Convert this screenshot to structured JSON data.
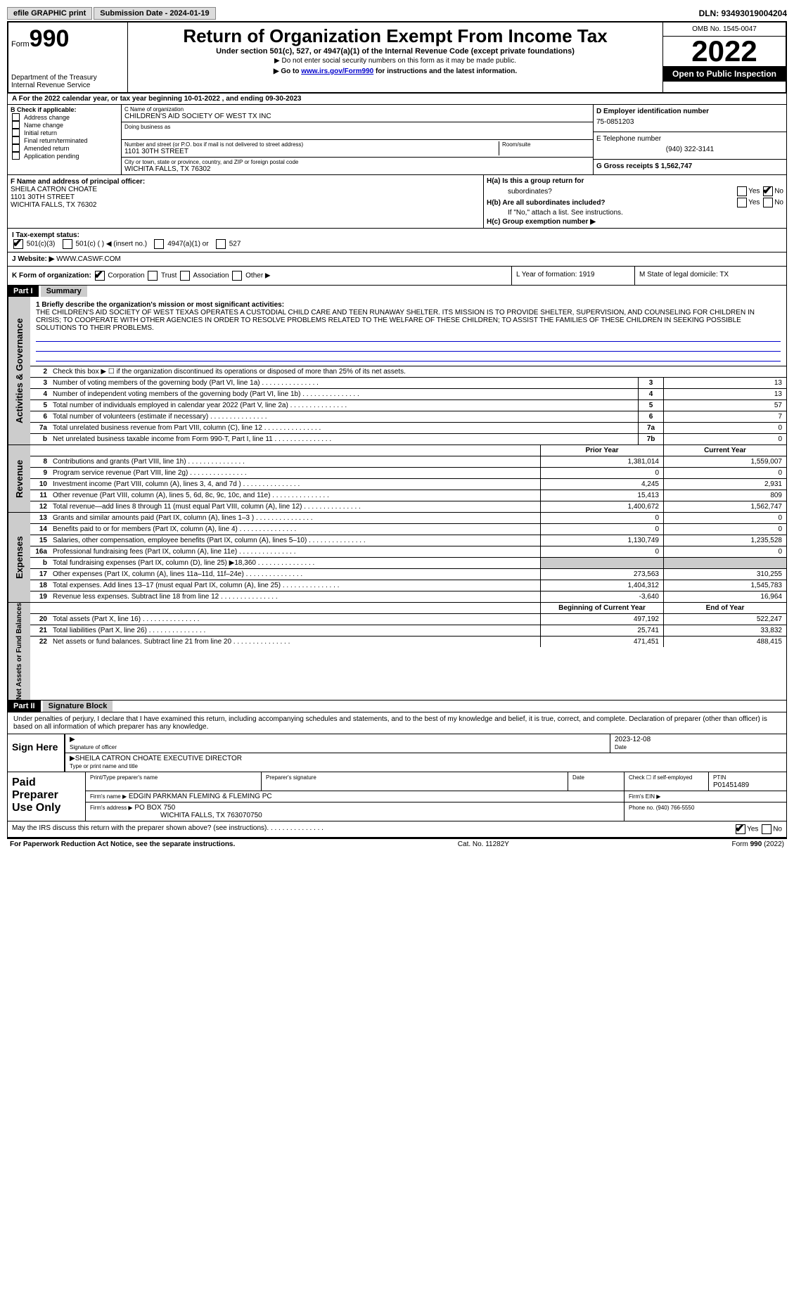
{
  "header": {
    "efile": "efile GRAPHIC print",
    "submission_date_label": "Submission Date - 2024-01-19",
    "dln": "DLN: 93493019004204"
  },
  "form_header": {
    "form_label": "Form",
    "form_number": "990",
    "dept": "Department of the Treasury\nInternal Revenue Service",
    "title": "Return of Organization Exempt From Income Tax",
    "sub1": "Under section 501(c), 527, or 4947(a)(1) of the Internal Revenue Code (except private foundations)",
    "sub2": "▶ Do not enter social security numbers on this form as it may be made public.",
    "sub3_pre": "▶ Go to ",
    "sub3_link": "www.irs.gov/Form990",
    "sub3_post": " for instructions and the latest information.",
    "omb": "OMB No. 1545-0047",
    "year": "2022",
    "open": "Open to Public Inspection"
  },
  "row_a": "A For the 2022 calendar year, or tax year beginning 10-01-2022   , and ending 09-30-2023",
  "col_b": {
    "title": "B Check if applicable:",
    "items": [
      "Address change",
      "Name change",
      "Initial return",
      "Final return/terminated",
      "Amended return",
      "Application pending"
    ]
  },
  "col_c": {
    "name_lbl": "C Name of organization",
    "name": "CHILDREN'S AID SOCIETY OF WEST TX INC",
    "dba_lbl": "Doing business as",
    "street_lbl": "Number and street (or P.O. box if mail is not delivered to street address)",
    "street": "1101 30TH STREET",
    "room_lbl": "Room/suite",
    "city_lbl": "City or town, state or province, country, and ZIP or foreign postal code",
    "city": "WICHITA FALLS, TX  76302"
  },
  "col_d": {
    "ein_lbl": "D Employer identification number",
    "ein": "75-0851203",
    "tel_lbl": "E Telephone number",
    "tel": "(940) 322-3141",
    "gross_lbl": "G Gross receipts $ 1,562,747"
  },
  "col_f": {
    "lbl": "F Name and address of principal officer:",
    "name": "SHEILA CATRON CHOATE",
    "street": "1101 30TH STREET",
    "city": "WICHITA FALLS, TX  76302"
  },
  "col_h": {
    "ha": "H(a)  Is this a group return for",
    "ha2": "subordinates?",
    "hb": "H(b) Are all subordinates included?",
    "hb_note": "If \"No,\" attach a list. See instructions.",
    "hc": "H(c) Group exemption number ▶"
  },
  "row_i": {
    "lbl": "I   Tax-exempt status:",
    "c1": "501(c)(3)",
    "c2": "501(c) (  ) ◀ (insert no.)",
    "c3": "4947(a)(1) or",
    "c4": "527"
  },
  "row_j": {
    "lbl": "J   Website: ▶",
    "val": "WWW.CASWF.COM"
  },
  "row_k": {
    "lbl": "K Form of organization:",
    "opts": [
      "Corporation",
      "Trust",
      "Association",
      "Other ▶"
    ]
  },
  "row_l": "L Year of formation: 1919",
  "row_m": "M State of legal domicile: TX",
  "part1": {
    "head": "Part I",
    "title": "Summary",
    "q1_lbl": "1  Briefly describe the organization's mission or most significant activities:",
    "mission": "THE CHILDREN'S AID SOCIETY OF WEST TEXAS OPERATES A CUSTODIAL CHILD CARE AND TEEN RUNAWAY SHELTER. ITS MISSION IS TO PROVIDE SHELTER, SUPERVISION, AND COUNSELING FOR CHILDREN IN CRISIS; TO COOPERATE WITH OTHER AGENCIES IN ORDER TO RESOLVE PROBLEMS RELATED TO THE WELFARE OF THESE CHILDREN; TO ASSIST THE FAMILIES OF THESE CHILDREN IN SEEKING POSSIBLE SOLUTIONS TO THEIR PROBLEMS."
  },
  "tabs": {
    "act": "Activities & Governance",
    "rev": "Revenue",
    "exp": "Expenses",
    "net": "Net Assets or Fund Balances"
  },
  "gov_rows": [
    {
      "n": "2",
      "d": "Check this box ▶ ☐ if the organization discontinued its operations or disposed of more than 25% of its net assets."
    },
    {
      "n": "3",
      "d": "Number of voting members of the governing body (Part VI, line 1a)",
      "b": "3",
      "v": "13"
    },
    {
      "n": "4",
      "d": "Number of independent voting members of the governing body (Part VI, line 1b)",
      "b": "4",
      "v": "13"
    },
    {
      "n": "5",
      "d": "Total number of individuals employed in calendar year 2022 (Part V, line 2a)",
      "b": "5",
      "v": "57"
    },
    {
      "n": "6",
      "d": "Total number of volunteers (estimate if necessary)",
      "b": "6",
      "v": "7"
    },
    {
      "n": "7a",
      "d": "Total unrelated business revenue from Part VIII, column (C), line 12",
      "b": "7a",
      "v": "0"
    },
    {
      "n": "b",
      "d": "Net unrelated business taxable income from Form 990-T, Part I, line 11",
      "b": "7b",
      "v": "0"
    }
  ],
  "rev_head": {
    "pyr": "Prior Year",
    "cyr": "Current Year"
  },
  "rev_rows": [
    {
      "n": "8",
      "d": "Contributions and grants (Part VIII, line 1h)",
      "p": "1,381,014",
      "c": "1,559,007"
    },
    {
      "n": "9",
      "d": "Program service revenue (Part VIII, line 2g)",
      "p": "0",
      "c": "0"
    },
    {
      "n": "10",
      "d": "Investment income (Part VIII, column (A), lines 3, 4, and 7d )",
      "p": "4,245",
      "c": "2,931"
    },
    {
      "n": "11",
      "d": "Other revenue (Part VIII, column (A), lines 5, 6d, 8c, 9c, 10c, and 11e)",
      "p": "15,413",
      "c": "809"
    },
    {
      "n": "12",
      "d": "Total revenue—add lines 8 through 11 (must equal Part VIII, column (A), line 12)",
      "p": "1,400,672",
      "c": "1,562,747"
    }
  ],
  "exp_rows": [
    {
      "n": "13",
      "d": "Grants and similar amounts paid (Part IX, column (A), lines 1–3 )",
      "p": "0",
      "c": "0"
    },
    {
      "n": "14",
      "d": "Benefits paid to or for members (Part IX, column (A), line 4)",
      "p": "0",
      "c": "0"
    },
    {
      "n": "15",
      "d": "Salaries, other compensation, employee benefits (Part IX, column (A), lines 5–10)",
      "p": "1,130,749",
      "c": "1,235,528"
    },
    {
      "n": "16a",
      "d": "Professional fundraising fees (Part IX, column (A), line 11e)",
      "p": "0",
      "c": "0"
    },
    {
      "n": "b",
      "d": "Total fundraising expenses (Part IX, column (D), line 25) ▶18,360",
      "p": "",
      "c": "",
      "shade": true
    },
    {
      "n": "17",
      "d": "Other expenses (Part IX, column (A), lines 11a–11d, 11f–24e)",
      "p": "273,563",
      "c": "310,255"
    },
    {
      "n": "18",
      "d": "Total expenses. Add lines 13–17 (must equal Part IX, column (A), line 25)",
      "p": "1,404,312",
      "c": "1,545,783"
    },
    {
      "n": "19",
      "d": "Revenue less expenses. Subtract line 18 from line 12",
      "p": "-3,640",
      "c": "16,964"
    }
  ],
  "net_head": {
    "pyr": "Beginning of Current Year",
    "cyr": "End of Year"
  },
  "net_rows": [
    {
      "n": "20",
      "d": "Total assets (Part X, line 16)",
      "p": "497,192",
      "c": "522,247"
    },
    {
      "n": "21",
      "d": "Total liabilities (Part X, line 26)",
      "p": "25,741",
      "c": "33,832"
    },
    {
      "n": "22",
      "d": "Net assets or fund balances. Subtract line 21 from line 20",
      "p": "471,451",
      "c": "488,415"
    }
  ],
  "part2": {
    "head": "Part II",
    "title": "Signature Block"
  },
  "penalty": "Under penalties of perjury, I declare that I have examined this return, including accompanying schedules and statements, and to the best of my knowledge and belief, it is true, correct, and complete. Declaration of preparer (other than officer) is based on all information of which preparer has any knowledge.",
  "sign": {
    "here": "Sign Here",
    "sig_lbl": "Signature of officer",
    "date": "2023-12-08",
    "date_lbl": "Date",
    "name": "SHEILA CATRON CHOATE  EXECUTIVE DIRECTOR",
    "name_lbl": "Type or print name and title"
  },
  "paid": {
    "title": "Paid Preparer Use Only",
    "h1": "Print/Type preparer's name",
    "h2": "Preparer's signature",
    "h3": "Date",
    "h4": "Check ☐ if self-employed",
    "h5": "PTIN",
    "ptin": "P01451489",
    "firm_name_lbl": "Firm's name    ▶",
    "firm_name": "EDGIN PARKMAN FLEMING & FLEMING PC",
    "firm_ein_lbl": "Firm's EIN ▶",
    "firm_addr_lbl": "Firm's address ▶",
    "firm_addr1": "PO BOX 750",
    "firm_addr2": "WICHITA FALLS, TX  763070750",
    "phone_lbl": "Phone no. (940) 766-5550"
  },
  "may": "May the IRS discuss this return with the preparer shown above? (see instructions)",
  "footer": {
    "left": "For Paperwork Reduction Act Notice, see the separate instructions.",
    "mid": "Cat. No. 11282Y",
    "right_pre": "Form ",
    "right_bold": "990",
    "right_post": " (2022)"
  }
}
